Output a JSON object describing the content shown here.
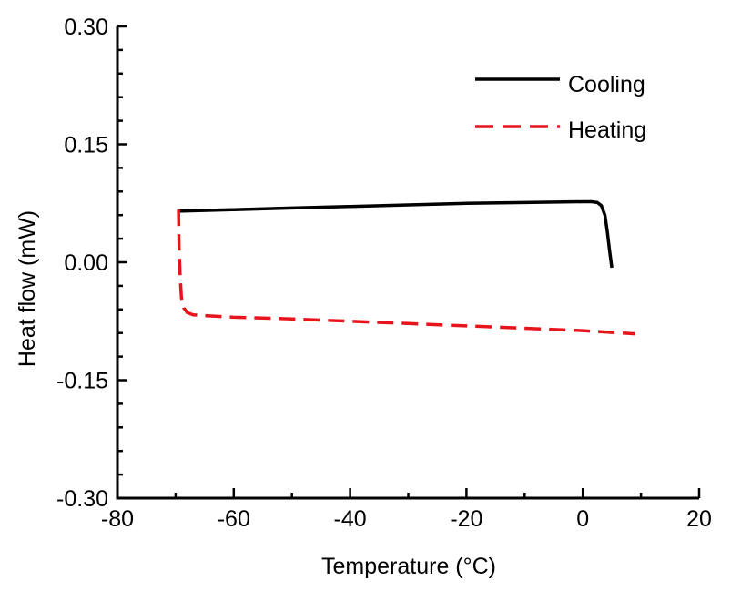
{
  "chart_data": {
    "type": "line",
    "xlabel": "Temperature (°C)",
    "ylabel": "Heat flow (mW)",
    "xlim": [
      -80,
      20
    ],
    "ylim": [
      -0.3,
      0.3
    ],
    "xticks": [
      -80,
      -60,
      -40,
      -20,
      0,
      20
    ],
    "yticks": [
      -0.3,
      -0.15,
      0.0,
      0.15,
      0.3
    ],
    "xtick_labels": [
      "-80",
      "-60",
      "-40",
      "-20",
      "0",
      "20"
    ],
    "ytick_labels": [
      "-0.30",
      "-0.15",
      "0.00",
      "0.15",
      "0.30"
    ],
    "legend_position": "top-right",
    "series": [
      {
        "name": "Cooling",
        "style": "solid",
        "color": "#000000",
        "x": [
          -69.5,
          -60,
          -50,
          -40,
          -30,
          -20,
          -10,
          0,
          1.5,
          2.5,
          3.2,
          3.8,
          4.2,
          4.6,
          5.0
        ],
        "y": [
          0.065,
          0.067,
          0.069,
          0.071,
          0.073,
          0.075,
          0.076,
          0.077,
          0.077,
          0.076,
          0.072,
          0.06,
          0.04,
          0.015,
          -0.007
        ]
      },
      {
        "name": "Heating",
        "style": "dashed",
        "color": "#e8141b",
        "x": [
          -69.5,
          -69.4,
          -69.2,
          -69.0,
          -68.6,
          -68.0,
          -67.0,
          -60,
          -50,
          -40,
          -30,
          -20,
          -10,
          0,
          9
        ],
        "y": [
          0.067,
          0.02,
          -0.02,
          -0.045,
          -0.058,
          -0.064,
          -0.067,
          -0.07,
          -0.072,
          -0.075,
          -0.078,
          -0.081,
          -0.084,
          -0.087,
          -0.091
        ]
      }
    ]
  }
}
